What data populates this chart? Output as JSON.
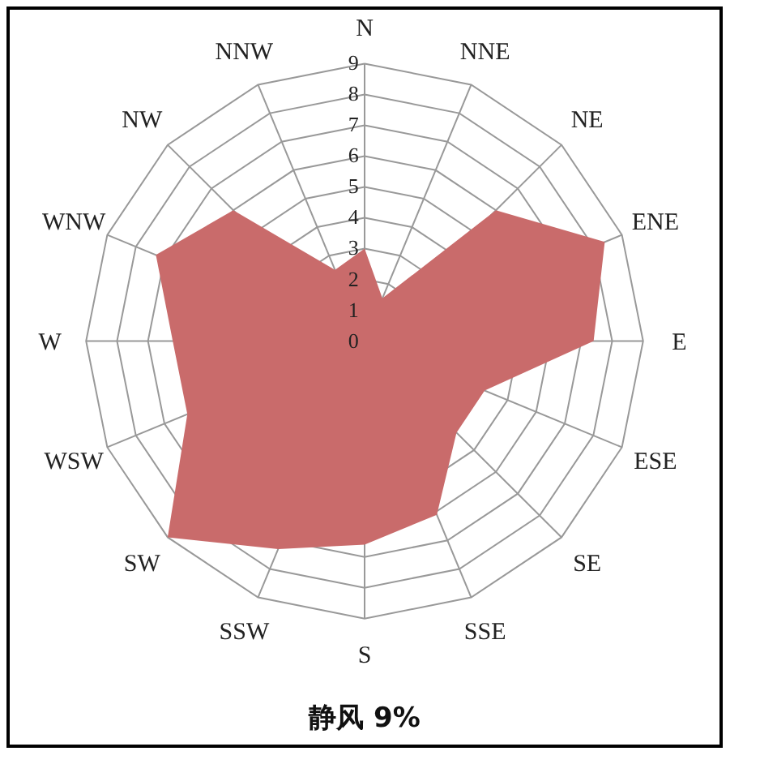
{
  "chart_data": {
    "type": "radar",
    "categories": [
      "N",
      "NNE",
      "NE",
      "ENE",
      "E",
      "ESE",
      "SE",
      "SSE",
      "S",
      "SSW",
      "SW",
      "WSW",
      "W",
      "WNW",
      "NW",
      "NNW"
    ],
    "series": [
      {
        "values": [
          3,
          1.5,
          6,
          8.4,
          7.4,
          4.2,
          4.2,
          6.1,
          6.6,
          7.3,
          9,
          6.2,
          6.2,
          7.3,
          6,
          2.5
        ],
        "color": "#c96b6b"
      }
    ],
    "ylim": [
      0,
      9
    ],
    "yticks": [
      0,
      1,
      2,
      3,
      4,
      5,
      6,
      7,
      8,
      9
    ],
    "grid": true,
    "annotations": [
      "静风 9%"
    ]
  }
}
